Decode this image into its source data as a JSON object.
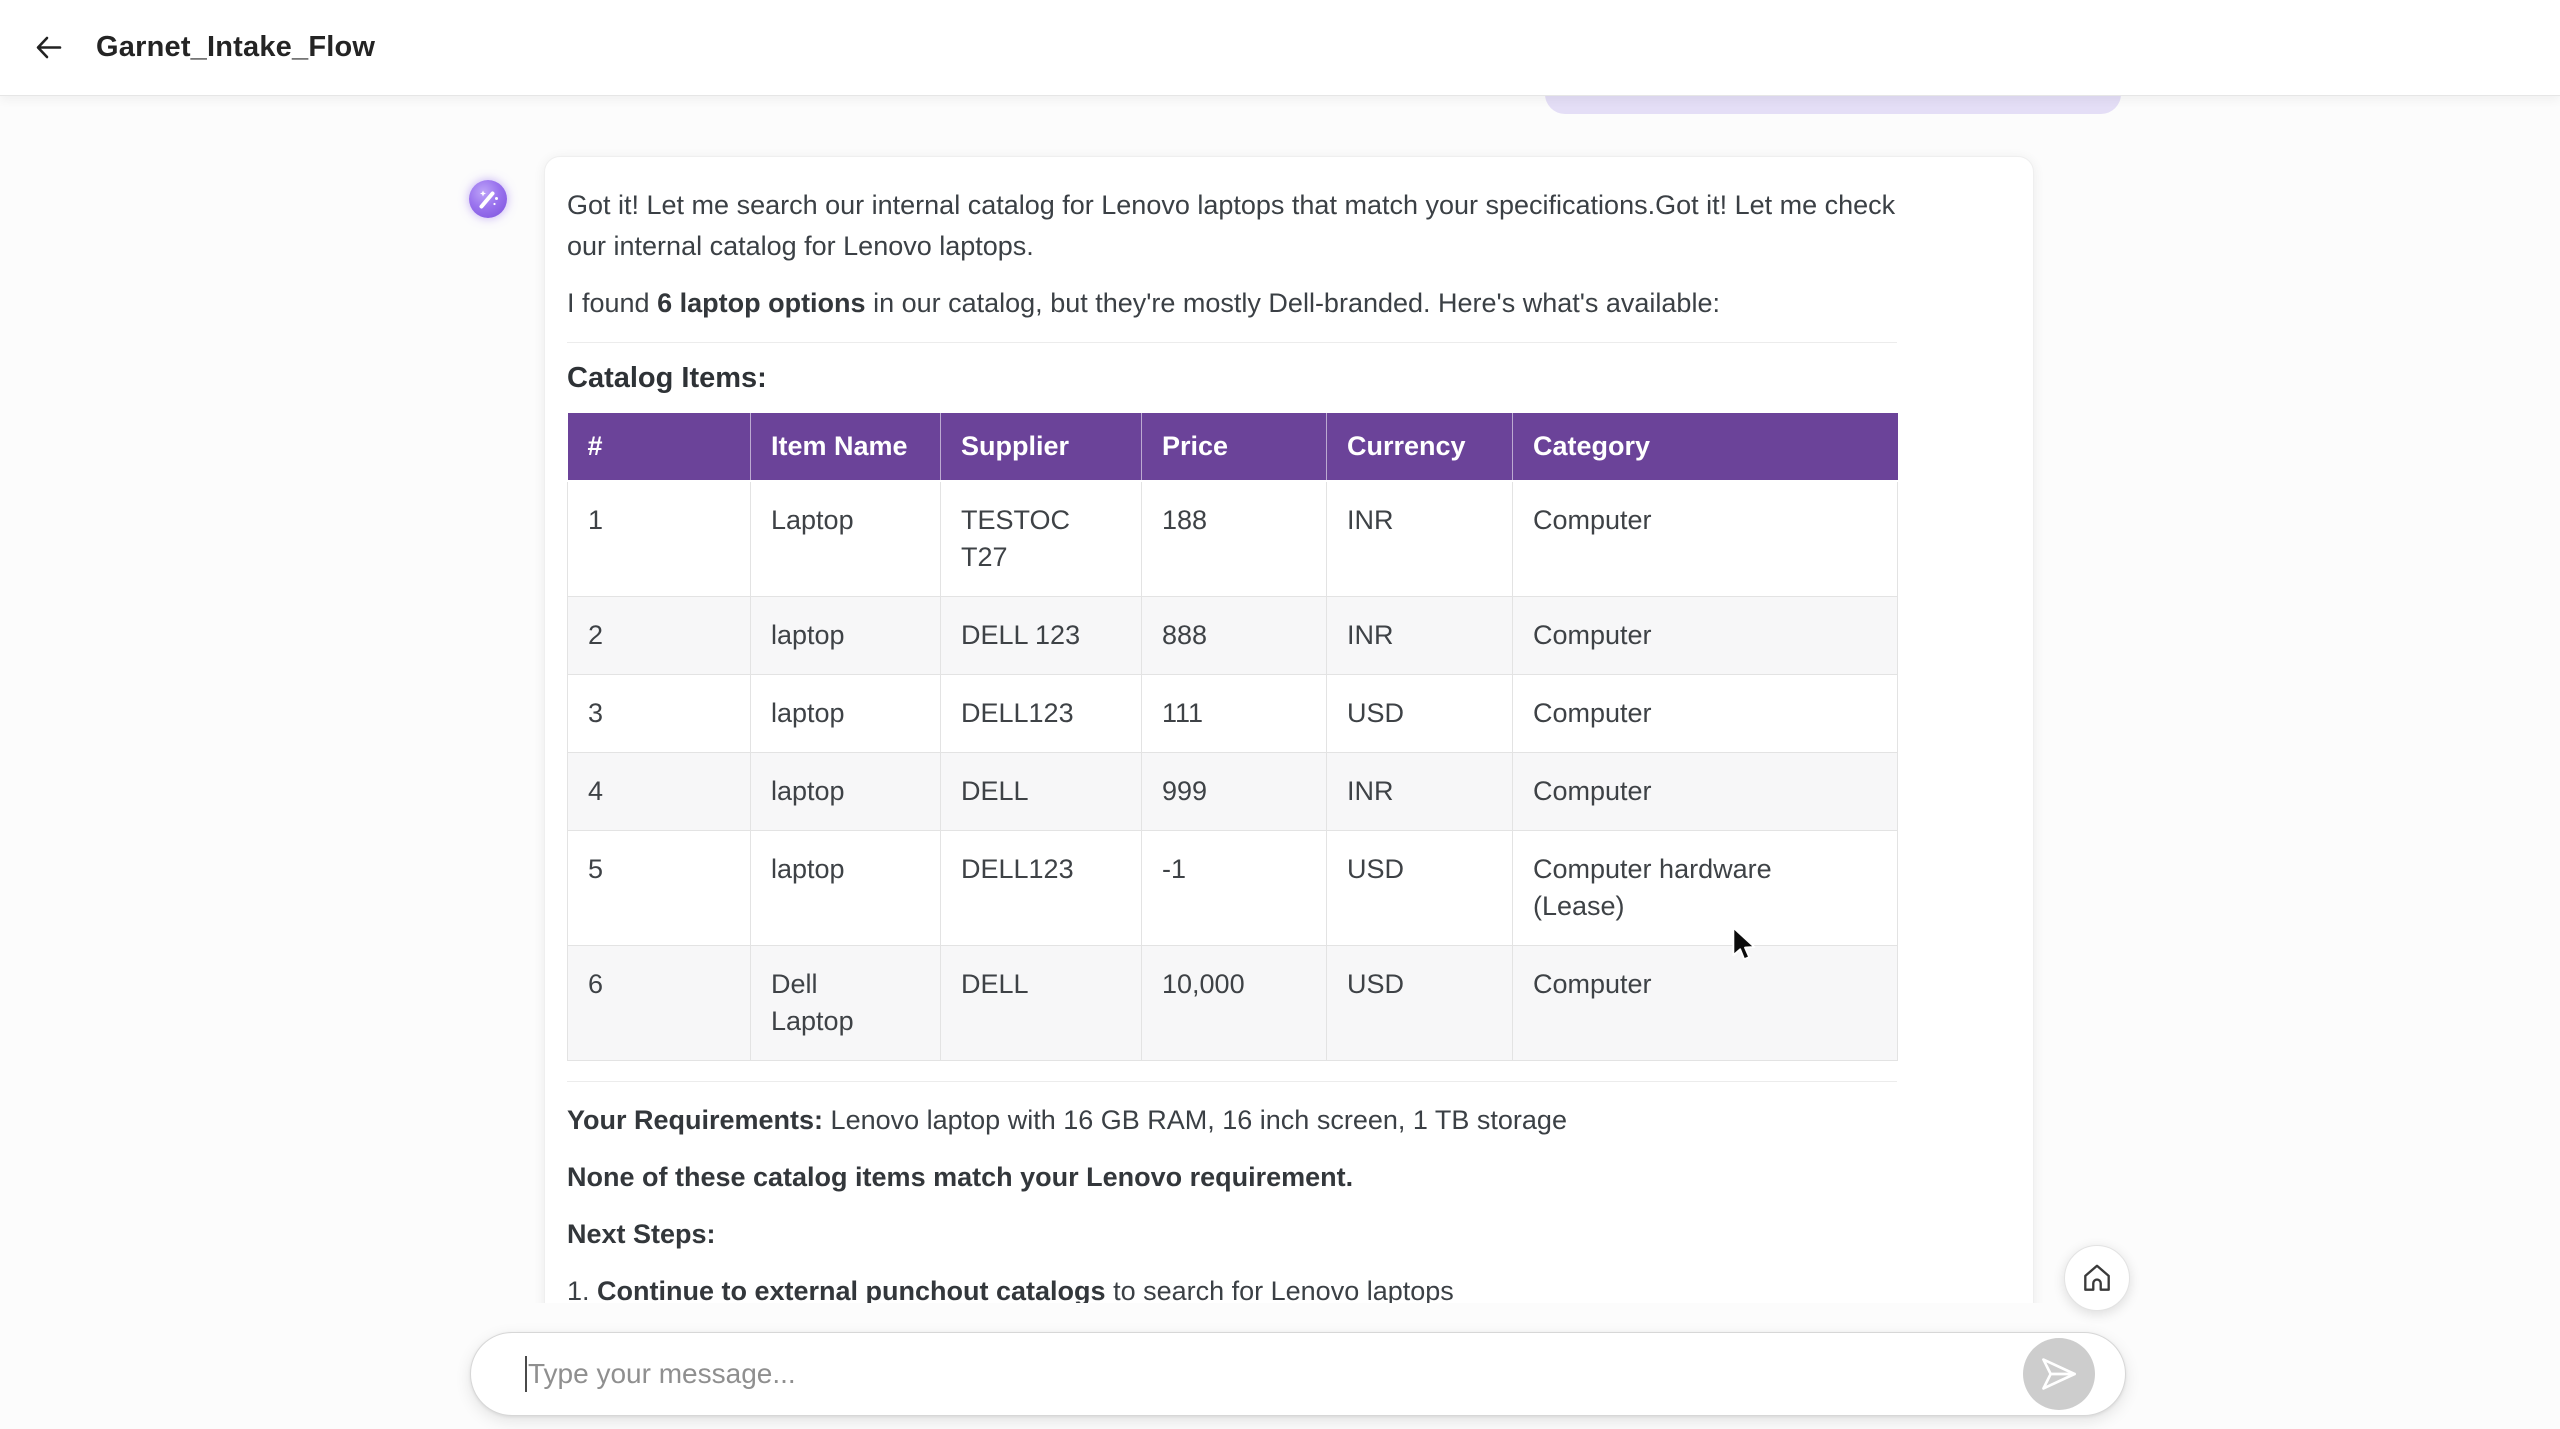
{
  "header": {
    "title": "Garnet_Intake_Flow"
  },
  "chat": {
    "user_bubble_color": "#e4def6",
    "assistant": {
      "paragraph1": "Got it! Let me search our internal catalog for Lenovo laptops that match your specifications.Got it! Let me check our internal catalog for Lenovo laptops.",
      "paragraph2_prefix": "I found ",
      "paragraph2_bold": "6 laptop options",
      "paragraph2_suffix": " in our catalog, but they're mostly Dell-branded. Here's what's available:",
      "catalog_heading": "Catalog Items:",
      "table": {
        "header_bg": "#6b4399",
        "stripe_bg": "#f7f7f8",
        "headers": [
          "#",
          "Item Name",
          "Supplier",
          "Price",
          "Currency",
          "Category"
        ],
        "rows": [
          [
            "1",
            "Laptop",
            "TESTOCT27",
            "188",
            "INR",
            "Computer"
          ],
          [
            "2",
            "laptop",
            "DELL 123",
            "888",
            "INR",
            "Computer"
          ],
          [
            "3",
            "laptop",
            "DELL123",
            "111",
            "USD",
            "Computer"
          ],
          [
            "4",
            "laptop",
            "DELL",
            "999",
            "INR",
            "Computer"
          ],
          [
            "5",
            "laptop",
            "DELL123",
            "-1",
            "USD",
            "Computer hardware (Lease)"
          ],
          [
            "6",
            "Dell Laptop",
            "DELL",
            "10,000",
            "USD",
            "Computer"
          ]
        ]
      },
      "requirements_label": "Your Requirements:",
      "requirements_text": " Lenovo laptop with 16 GB RAM, 16 inch screen, 1 TB storage",
      "no_match_text": "None of these catalog items match your Lenovo requirement.",
      "next_steps_label": "Next Steps:",
      "step1_number": "1. ",
      "step1_bold": "Continue to external punchout catalogs",
      "step1_suffix": " to search for Lenovo laptops"
    }
  },
  "composer": {
    "placeholder": "Type your message..."
  },
  "icons": {
    "back": "arrow-left",
    "avatar": "magic-wand",
    "send": "paper-plane",
    "home": "home",
    "cursor": "mouse-pointer"
  }
}
